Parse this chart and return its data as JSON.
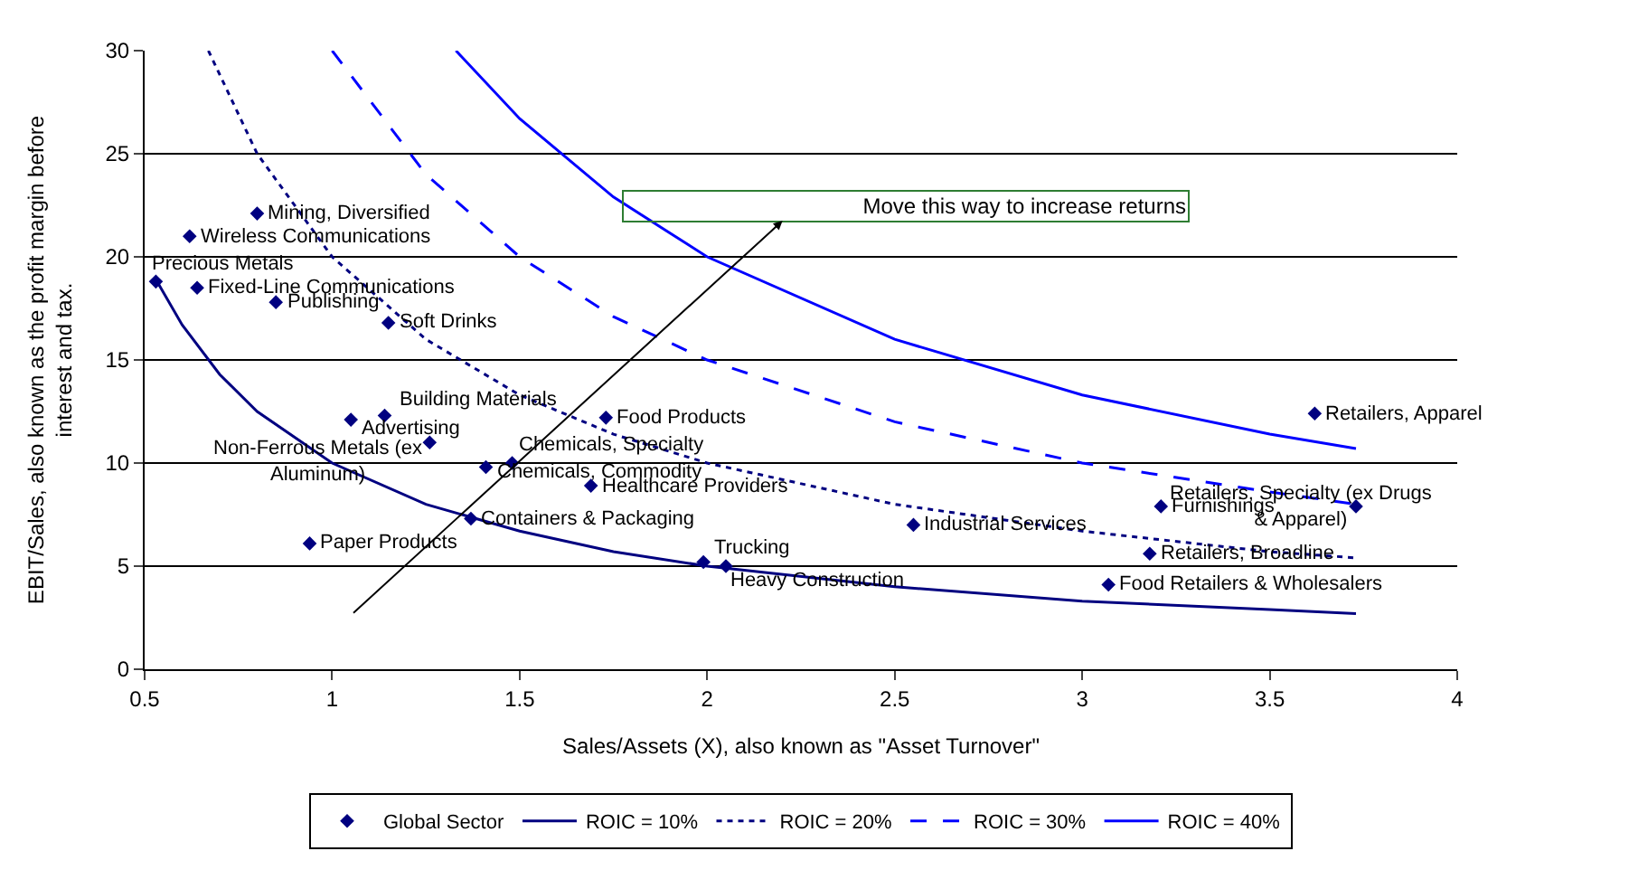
{
  "chart_data": {
    "type": "scatter",
    "xlabel": "Sales/Assets (X), also known as \"Asset Turnover\"",
    "ylabel": "EBIT/Sales, also known as the profit margin before\ninterest and tax.",
    "xlim": [
      0.5,
      4
    ],
    "xticks": [
      0.5,
      1,
      1.5,
      2,
      2.5,
      3,
      3.5,
      4
    ],
    "ylim": [
      0,
      30
    ],
    "yticks": [
      0,
      5,
      10,
      15,
      20,
      25,
      30
    ],
    "grid": "y",
    "legend": "bottom",
    "series": [
      {
        "name": "Global Sector",
        "marker": "diamond",
        "color": "#000080",
        "x": [
          0.8,
          0.62,
          0.53,
          0.64,
          0.85,
          1.15,
          1.14,
          1.05,
          1.26,
          1.48,
          1.41,
          1.37,
          0.94,
          1.73,
          1.69,
          1.99,
          2.05,
          2.55,
          3.21,
          3.18,
          3.07,
          3.73,
          3.62
        ],
        "values": [
          22.1,
          21.0,
          18.8,
          18.5,
          17.8,
          16.8,
          12.3,
          12.1,
          11.0,
          10.0,
          9.8,
          7.3,
          6.1,
          12.2,
          8.9,
          5.2,
          5.0,
          7.0,
          7.9,
          5.6,
          4.1,
          7.9,
          12.4
        ]
      },
      {
        "name": "ROIC = 10%",
        "type": "line",
        "marker": "none",
        "line_style": "solid",
        "color": "#000080",
        "x": [
          0.53,
          0.6,
          0.7,
          0.8,
          1.0,
          1.25,
          1.5,
          1.75,
          2,
          2.5,
          3,
          3.5,
          3.73
        ],
        "values": [
          18.9,
          16.7,
          14.3,
          12.5,
          10.0,
          8.0,
          6.7,
          5.7,
          5.0,
          4.0,
          3.3,
          2.9,
          2.7
        ]
      },
      {
        "name": "ROIC = 20%",
        "type": "line",
        "marker": "none",
        "line_style": "dotted",
        "color": "#000080",
        "x": [
          0.67,
          0.8,
          1,
          1.25,
          1.5,
          1.75,
          2,
          2.5,
          3,
          3.5,
          3.73
        ],
        "values": [
          30,
          25,
          20,
          16,
          13.3,
          11.4,
          10,
          8,
          6.7,
          5.7,
          5.4
        ]
      },
      {
        "name": "ROIC = 30%",
        "type": "line",
        "marker": "none",
        "line_style": "dashed",
        "color": "#0000ff",
        "x": [
          1.0,
          1.25,
          1.5,
          1.75,
          2,
          2.5,
          3,
          3.5,
          3.73
        ],
        "values": [
          30,
          24,
          20,
          17.1,
          15,
          12,
          10,
          8.6,
          8.0
        ]
      },
      {
        "name": "ROIC = 40%",
        "type": "line",
        "marker": "none",
        "line_style": "solid",
        "color": "#0000ff",
        "x": [
          1.33,
          1.5,
          1.75,
          2,
          2.5,
          3,
          3.5,
          3.73
        ],
        "values": [
          30,
          26.7,
          22.9,
          20,
          16,
          13.3,
          11.4,
          10.7
        ]
      }
    ],
    "annotations": [
      {
        "text": "Mining, Diversified",
        "x": 0.8,
        "y": 22.1
      },
      {
        "text": "Wireless Communications",
        "x": 0.62,
        "y": 21.0
      },
      {
        "text": "Precious Metals",
        "x": 0.53,
        "y": 18.8
      },
      {
        "text": "Fixed-Line Communications",
        "x": 0.64,
        "y": 18.5
      },
      {
        "text": "Publishing",
        "x": 0.85,
        "y": 17.8
      },
      {
        "text": "Soft Drinks",
        "x": 1.15,
        "y": 16.8
      },
      {
        "text": "Building Materials",
        "x": 1.14,
        "y": 12.3
      },
      {
        "text": "Advertising",
        "x": 1.05,
        "y": 12.1
      },
      {
        "text": "Non-Ferrous Metals (ex\nAluminum)",
        "x": 1.26,
        "y": 11.0
      },
      {
        "text": "Chemicals, Specialty",
        "x": 1.48,
        "y": 10.0
      },
      {
        "text": "Chemicals, Commodity",
        "x": 1.41,
        "y": 9.8
      },
      {
        "text": "Containers & Packaging",
        "x": 1.37,
        "y": 7.3
      },
      {
        "text": "Paper Products",
        "x": 0.94,
        "y": 6.1
      },
      {
        "text": "Food Products",
        "x": 1.73,
        "y": 12.2
      },
      {
        "text": "Healthcare Providers",
        "x": 1.69,
        "y": 8.9
      },
      {
        "text": "Trucking",
        "x": 1.99,
        "y": 5.2
      },
      {
        "text": "Heavy Construction",
        "x": 2.05,
        "y": 5.0
      },
      {
        "text": "Industrial Services",
        "x": 2.55,
        "y": 7.0
      },
      {
        "text": "Furnishings",
        "x": 3.21,
        "y": 7.9
      },
      {
        "text": "Retailers, Broadline",
        "x": 3.18,
        "y": 5.6
      },
      {
        "text": "Food Retailers & Wholesalers",
        "x": 3.07,
        "y": 4.1
      },
      {
        "text": "Retailers, Specialty (ex Drugs\n& Apparel)",
        "x": 3.73,
        "y": 7.9
      },
      {
        "text": "Retailers, Apparel",
        "x": 3.62,
        "y": 12.4
      },
      "Move this way to increase returns"
    ]
  }
}
